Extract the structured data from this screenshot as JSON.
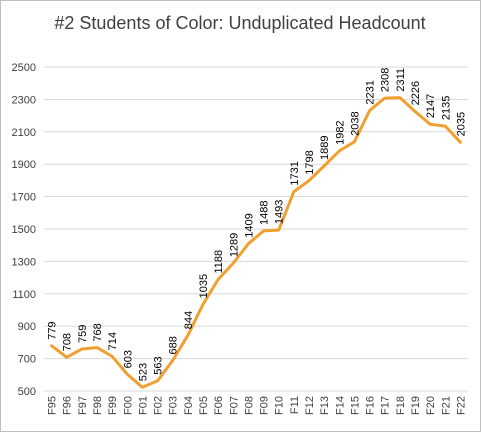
{
  "chart_data": {
    "type": "line",
    "title": "#2 Students of Color: Unduplicated Headcount",
    "xlabel": "",
    "ylabel": "",
    "ylim": [
      500,
      2500
    ],
    "yticks": [
      500,
      700,
      900,
      1100,
      1300,
      1500,
      1700,
      1900,
      2100,
      2300,
      2500
    ],
    "grid": "horizontal",
    "legend": "none",
    "line_color": "#F0A030",
    "categories": [
      "F95",
      "F96",
      "F97",
      "F98",
      "F99",
      "F00",
      "F01",
      "F02",
      "F03",
      "F04",
      "F05",
      "F06",
      "F07",
      "F08",
      "F09",
      "F10",
      "F11",
      "F12",
      "F13",
      "F14",
      "F15",
      "F16",
      "F17",
      "F18",
      "F19",
      "F20",
      "F21",
      "F22"
    ],
    "values": [
      779,
      708,
      759,
      768,
      714,
      603,
      523,
      563,
      688,
      844,
      1035,
      1188,
      1289,
      1409,
      1488,
      1493,
      1731,
      1798,
      1889,
      1982,
      2038,
      2231,
      2308,
      2311,
      2226,
      2147,
      2135,
      2035
    ]
  }
}
